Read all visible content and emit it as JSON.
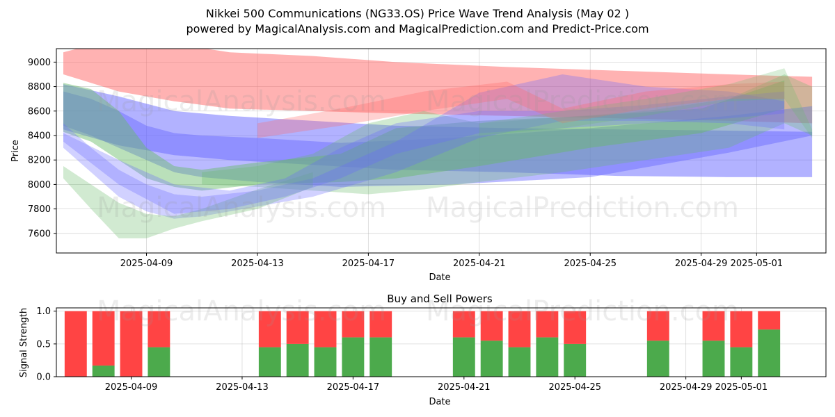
{
  "figure": {
    "title_line1": "Nikkei 500 Communications (NG33.OS) Price Wave Trend Analysis (May 02 )",
    "title_line2": "powered by MagicalAnalysis.com and MagicalPrediction.com and Predict-Price.com",
    "watermarks": [
      "MagicalAnalysis.com",
      "MagicalPrediction.com"
    ]
  },
  "chart_data": [
    {
      "type": "area",
      "name": "price-wave-chart",
      "xlabel": "Date",
      "ylabel": "Price",
      "x_ticks": [
        "2025-04-09",
        "2025-04-13",
        "2025-04-17",
        "2025-04-21",
        "2025-04-25",
        "2025-04-29",
        "2025-05-01"
      ],
      "y_ticks": [
        7600,
        7800,
        8000,
        8200,
        8400,
        8600,
        8800,
        9000
      ],
      "xlim": [
        "2025-04-05T18:00",
        "2025-05-03T12:00"
      ],
      "ylim": [
        7440,
        9110
      ],
      "grid": true,
      "colors": {
        "red": "#ff6666",
        "blue": "#6666ff",
        "green": "#66bb66"
      },
      "bands": [
        {
          "color": "red",
          "opacity": 0.5,
          "x": [
            "2025-04-06",
            "2025-04-08",
            "2025-04-10",
            "2025-04-12",
            "2025-04-15",
            "2025-04-18",
            "2025-04-22",
            "2025-04-26",
            "2025-04-30",
            "2025-05-03"
          ],
          "upper": [
            9080,
            9200,
            9150,
            9080,
            9050,
            9000,
            8960,
            8930,
            8900,
            8880
          ],
          "lower": [
            8900,
            8760,
            8680,
            8620,
            8600,
            8580,
            8560,
            8540,
            8520,
            8500
          ]
        },
        {
          "color": "blue",
          "opacity": 0.5,
          "x": [
            "2025-04-06",
            "2025-04-08",
            "2025-04-10",
            "2025-04-12",
            "2025-04-15",
            "2025-04-18",
            "2025-04-22",
            "2025-04-26",
            "2025-04-30",
            "2025-05-03"
          ],
          "upper": [
            8820,
            8720,
            8600,
            8560,
            8520,
            8480,
            8460,
            8450,
            8440,
            8430
          ],
          "lower": [
            8450,
            8320,
            8240,
            8200,
            8160,
            8120,
            8100,
            8070,
            8060,
            8060
          ]
        },
        {
          "color": "blue",
          "opacity": 0.45,
          "x": [
            "2025-04-06",
            "2025-04-07",
            "2025-04-08",
            "2025-04-09",
            "2025-04-10",
            "2025-04-11",
            "2025-04-13",
            "2025-04-16",
            "2025-04-20",
            "2025-04-25",
            "2025-04-30",
            "2025-05-03"
          ],
          "upper": [
            8760,
            8700,
            8600,
            8480,
            8420,
            8400,
            8380,
            8340,
            8380,
            8460,
            8560,
            8640
          ],
          "lower": [
            8480,
            8400,
            8300,
            8200,
            8100,
            8060,
            8020,
            7980,
            8000,
            8060,
            8260,
            8400
          ]
        },
        {
          "color": "green",
          "opacity": 0.45,
          "x": [
            "2025-04-06",
            "2025-04-07",
            "2025-04-08",
            "2025-04-09",
            "2025-04-10",
            "2025-04-11",
            "2025-04-13",
            "2025-04-16",
            "2025-04-18",
            "2025-04-21",
            "2025-04-25",
            "2025-04-29",
            "2025-05-02"
          ],
          "upper": [
            8830,
            8780,
            8600,
            8300,
            8150,
            8120,
            8180,
            8250,
            8460,
            8520,
            8560,
            8620,
            8850
          ],
          "lower": [
            8430,
            8350,
            8200,
            8050,
            7980,
            7950,
            8000,
            8020,
            8050,
            8150,
            8300,
            8420,
            8620
          ]
        },
        {
          "color": "green",
          "opacity": 0.3,
          "x": [
            "2025-04-11",
            "2025-04-13",
            "2025-04-15",
            "2025-04-17",
            "2025-04-19",
            "2025-04-21",
            "2025-04-24",
            "2025-04-27",
            "2025-04-30",
            "2025-05-02",
            "2025-05-03"
          ],
          "upper": [
            8100,
            8150,
            8250,
            8500,
            8600,
            8500,
            8550,
            8600,
            8700,
            8900,
            8800
          ],
          "lower": [
            8000,
            7980,
            7950,
            7920,
            7960,
            8020,
            8100,
            8200,
            8300,
            8500,
            8400
          ]
        },
        {
          "color": "blue",
          "opacity": 0.3,
          "x": [
            "2025-04-06",
            "2025-04-07",
            "2025-04-08",
            "2025-04-09",
            "2025-04-10",
            "2025-04-11",
            "2025-04-13",
            "2025-04-15",
            "2025-04-18",
            "2025-04-21",
            "2025-04-24",
            "2025-04-27",
            "2025-04-30",
            "2025-05-02"
          ],
          "upper": [
            8500,
            8300,
            8120,
            8000,
            7920,
            7900,
            7950,
            8050,
            8350,
            8750,
            8900,
            8800,
            8760,
            8680
          ],
          "lower": [
            8300,
            8100,
            7900,
            7780,
            7720,
            7740,
            7820,
            7900,
            8100,
            8380,
            8520,
            8520,
            8500,
            8450
          ]
        },
        {
          "color": "green",
          "opacity": 0.3,
          "x": [
            "2025-04-06",
            "2025-04-07",
            "2025-04-08",
            "2025-04-09",
            "2025-04-10",
            "2025-04-11",
            "2025-04-13",
            "2025-04-15"
          ],
          "upper": [
            8150,
            8000,
            7850,
            7760,
            7740,
            7800,
            7960,
            8100
          ],
          "lower": [
            8050,
            7800,
            7560,
            7560,
            7640,
            7700,
            7800,
            7980
          ]
        },
        {
          "color": "blue",
          "opacity": 0.3,
          "x": [
            "2025-04-06",
            "2025-04-08",
            "2025-04-10",
            "2025-04-12",
            "2025-04-14",
            "2025-04-16",
            "2025-04-18",
            "2025-04-21",
            "2025-04-24",
            "2025-04-27",
            "2025-04-30",
            "2025-05-02"
          ],
          "upper": [
            8420,
            8200,
            8000,
            7950,
            8050,
            8300,
            8500,
            8600,
            8600,
            8650,
            8720,
            8760
          ],
          "lower": [
            8350,
            8000,
            7760,
            7800,
            7900,
            8050,
            8250,
            8420,
            8460,
            8500,
            8540,
            8580
          ]
        },
        {
          "color": "red",
          "opacity": 0.3,
          "x": [
            "2025-04-13",
            "2025-04-16",
            "2025-04-19",
            "2025-04-22",
            "2025-04-24",
            "2025-04-27",
            "2025-04-30",
            "2025-05-02"
          ],
          "upper": [
            8500,
            8620,
            8760,
            8840,
            8620,
            8760,
            8820,
            8840
          ],
          "lower": [
            8380,
            8480,
            8600,
            8700,
            8500,
            8620,
            8700,
            8700
          ]
        },
        {
          "color": "green",
          "opacity": 0.25,
          "x": [
            "2025-04-21",
            "2025-04-24",
            "2025-04-27",
            "2025-04-30",
            "2025-05-02",
            "2025-05-03"
          ],
          "upper": [
            8500,
            8600,
            8700,
            8820,
            8950,
            8450
          ],
          "lower": [
            8400,
            8460,
            8560,
            8680,
            8700,
            8380
          ]
        }
      ]
    },
    {
      "type": "bar",
      "name": "buy-sell-powers",
      "title": "Buy and Sell Powers",
      "xlabel": "Date",
      "ylabel": "Signal Strength",
      "x_ticks": [
        "2025-04-09",
        "2025-04-13",
        "2025-04-17",
        "2025-04-21",
        "2025-04-25",
        "2025-04-29",
        "2025-05-01"
      ],
      "y_ticks": [
        0.0,
        0.5,
        1.0
      ],
      "ylim": [
        0,
        1.05
      ],
      "grid": true,
      "colors": {
        "buy": "#4caa4c",
        "sell": "#ff4444"
      },
      "dates": [
        "2025-04-07",
        "2025-04-08",
        "2025-04-09",
        "2025-04-10",
        "2025-04-14",
        "2025-04-15",
        "2025-04-16",
        "2025-04-17",
        "2025-04-18",
        "2025-04-21",
        "2025-04-22",
        "2025-04-23",
        "2025-04-24",
        "2025-04-25",
        "2025-04-28",
        "2025-04-30",
        "2025-05-01",
        "2025-05-02"
      ],
      "buy": [
        0.0,
        0.17,
        0.0,
        0.45,
        0.45,
        0.5,
        0.45,
        0.6,
        0.6,
        0.6,
        0.55,
        0.45,
        0.6,
        0.5,
        0.55,
        0.55,
        0.45,
        0.72
      ],
      "sell": [
        1.0,
        0.83,
        1.0,
        0.55,
        0.55,
        0.5,
        0.55,
        0.4,
        0.4,
        0.4,
        0.45,
        0.55,
        0.4,
        0.5,
        0.45,
        0.45,
        0.55,
        0.28
      ]
    }
  ]
}
